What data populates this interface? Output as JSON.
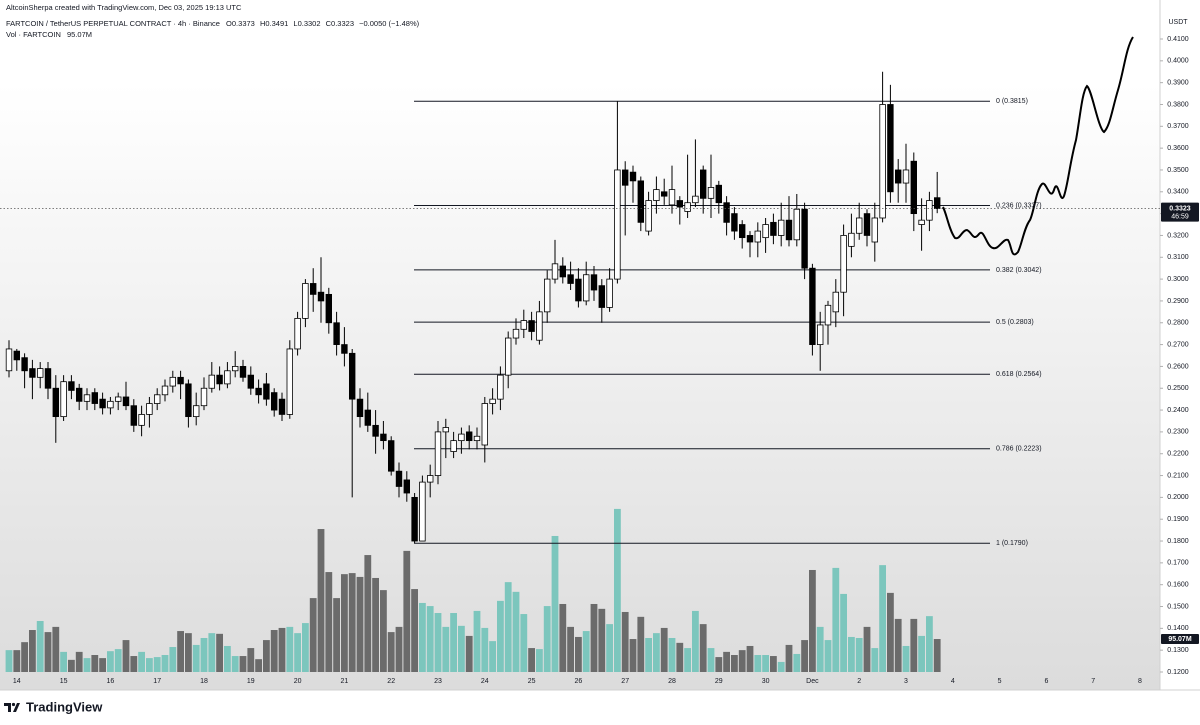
{
  "header": {
    "credit": "AltcoinSherpa created with TradingView.com, Dec 03, 2025 19:13 UTC",
    "symbol": "FARTCOIN / TetherUS PERPETUAL CONTRACT · 4h · Binance",
    "ohlc": [
      {
        "key": "O",
        "value": "0.3373"
      },
      {
        "key": "H",
        "value": "0.3491"
      },
      {
        "key": "L",
        "value": "0.3302"
      },
      {
        "key": "C",
        "value": "0.3323"
      }
    ],
    "change": "−0.0050 (−1.48%)",
    "vol_label": "Vol · FARTCOIN",
    "vol_value": "95.07M"
  },
  "footer": {
    "brand": "TradingView"
  },
  "chart_data": {
    "type": "candlestick",
    "x_labels": [
      "14",
      "15",
      "16",
      "17",
      "18",
      "19",
      "20",
      "21",
      "22",
      "23",
      "24",
      "25",
      "26",
      "27",
      "28",
      "29",
      "30",
      "Dec",
      "2",
      "3",
      "4",
      "5",
      "6",
      "7",
      "8"
    ],
    "open": [
      0.258,
      0.267,
      0.264,
      0.259,
      0.255,
      0.259,
      0.25,
      0.237,
      0.253,
      0.25,
      0.244,
      0.248,
      0.245,
      0.241,
      0.244,
      0.246,
      0.242,
      0.233,
      0.238,
      0.243,
      0.247,
      0.251,
      0.255,
      0.252,
      0.237,
      0.242,
      0.25,
      0.256,
      0.252,
      0.258,
      0.26,
      0.256,
      0.25,
      0.252,
      0.248,
      0.245,
      0.238,
      0.268,
      0.282,
      0.298,
      0.294,
      0.293,
      0.28,
      0.27,
      0.266,
      0.245,
      0.24,
      0.233,
      0.229,
      0.226,
      0.212,
      0.208,
      0.2,
      0.18,
      0.207,
      0.21,
      0.23,
      0.221,
      0.226,
      0.23,
      0.226,
      0.224,
      0.243,
      0.245,
      0.256,
      0.273,
      0.277,
      0.281,
      0.272,
      0.285,
      0.3,
      0.306,
      0.302,
      0.3,
      0.29,
      0.302,
      0.297,
      0.287,
      0.3,
      0.35,
      0.349,
      0.345,
      0.322,
      0.336,
      0.34,
      0.334,
      0.336,
      0.331,
      0.335,
      0.35,
      0.337,
      0.343,
      0.335,
      0.33,
      0.325,
      0.32,
      0.317,
      0.319,
      0.326,
      0.32,
      0.327,
      0.318,
      0.332,
      0.305,
      0.27,
      0.279,
      0.285,
      0.294,
      0.315,
      0.321,
      0.33,
      0.317,
      0.328,
      0.38,
      0.35,
      0.344,
      0.354,
      0.325,
      0.327,
      0.3373
    ],
    "high": [
      0.272,
      0.268,
      0.266,
      0.263,
      0.262,
      0.262,
      0.256,
      0.256,
      0.256,
      0.252,
      0.25,
      0.25,
      0.248,
      0.246,
      0.248,
      0.253,
      0.245,
      0.242,
      0.246,
      0.25,
      0.254,
      0.258,
      0.258,
      0.254,
      0.248,
      0.255,
      0.262,
      0.26,
      0.262,
      0.267,
      0.263,
      0.26,
      0.254,
      0.257,
      0.25,
      0.248,
      0.272,
      0.285,
      0.3,
      0.305,
      0.31,
      0.296,
      0.285,
      0.278,
      0.268,
      0.25,
      0.248,
      0.24,
      0.235,
      0.228,
      0.216,
      0.212,
      0.202,
      0.21,
      0.215,
      0.235,
      0.236,
      0.23,
      0.232,
      0.233,
      0.232,
      0.246,
      0.25,
      0.26,
      0.276,
      0.282,
      0.286,
      0.285,
      0.29,
      0.304,
      0.318,
      0.31,
      0.308,
      0.305,
      0.308,
      0.306,
      0.3,
      0.305,
      0.3815,
      0.354,
      0.352,
      0.347,
      0.34,
      0.347,
      0.346,
      0.352,
      0.338,
      0.357,
      0.364,
      0.352,
      0.357,
      0.345,
      0.338,
      0.333,
      0.327,
      0.322,
      0.326,
      0.328,
      0.33,
      0.335,
      0.338,
      0.339,
      0.335,
      0.307,
      0.285,
      0.29,
      0.3,
      0.325,
      0.33,
      0.335,
      0.332,
      0.335,
      0.395,
      0.389,
      0.355,
      0.362,
      0.358,
      0.337,
      0.34,
      0.3491
    ],
    "low": [
      0.255,
      0.258,
      0.25,
      0.245,
      0.25,
      0.245,
      0.225,
      0.235,
      0.245,
      0.24,
      0.24,
      0.24,
      0.238,
      0.238,
      0.24,
      0.24,
      0.23,
      0.228,
      0.232,
      0.24,
      0.244,
      0.248,
      0.245,
      0.232,
      0.233,
      0.24,
      0.248,
      0.249,
      0.25,
      0.255,
      0.253,
      0.247,
      0.243,
      0.242,
      0.237,
      0.235,
      0.236,
      0.265,
      0.278,
      0.285,
      0.28,
      0.275,
      0.265,
      0.26,
      0.2,
      0.232,
      0.23,
      0.22,
      0.222,
      0.21,
      0.2,
      0.198,
      0.179,
      0.18,
      0.2,
      0.206,
      0.218,
      0.218,
      0.22,
      0.222,
      0.222,
      0.216,
      0.238,
      0.24,
      0.25,
      0.27,
      0.273,
      0.272,
      0.27,
      0.28,
      0.298,
      0.298,
      0.295,
      0.287,
      0.288,
      0.29,
      0.28,
      0.285,
      0.298,
      0.32,
      0.335,
      0.322,
      0.32,
      0.33,
      0.334,
      0.33,
      0.325,
      0.328,
      0.333,
      0.33,
      0.328,
      0.33,
      0.32,
      0.318,
      0.314,
      0.31,
      0.31,
      0.312,
      0.316,
      0.315,
      0.315,
      0.315,
      0.3,
      0.265,
      0.258,
      0.27,
      0.278,
      0.283,
      0.31,
      0.318,
      0.315,
      0.308,
      0.326,
      0.335,
      0.335,
      0.335,
      0.322,
      0.313,
      0.322,
      0.3302
    ],
    "close": [
      0.268,
      0.263,
      0.258,
      0.255,
      0.259,
      0.25,
      0.237,
      0.253,
      0.249,
      0.244,
      0.247,
      0.243,
      0.241,
      0.244,
      0.246,
      0.242,
      0.233,
      0.238,
      0.243,
      0.247,
      0.251,
      0.255,
      0.252,
      0.237,
      0.242,
      0.25,
      0.256,
      0.252,
      0.258,
      0.26,
      0.255,
      0.25,
      0.247,
      0.245,
      0.24,
      0.238,
      0.268,
      0.282,
      0.298,
      0.293,
      0.29,
      0.28,
      0.27,
      0.266,
      0.245,
      0.237,
      0.233,
      0.228,
      0.226,
      0.212,
      0.205,
      0.202,
      0.18,
      0.207,
      0.21,
      0.23,
      0.232,
      0.226,
      0.229,
      0.226,
      0.228,
      0.243,
      0.245,
      0.256,
      0.273,
      0.277,
      0.281,
      0.276,
      0.285,
      0.3,
      0.307,
      0.301,
      0.298,
      0.29,
      0.302,
      0.295,
      0.287,
      0.3,
      0.35,
      0.343,
      0.345,
      0.326,
      0.336,
      0.341,
      0.338,
      0.341,
      0.333,
      0.335,
      0.338,
      0.337,
      0.342,
      0.335,
      0.326,
      0.322,
      0.319,
      0.317,
      0.322,
      0.325,
      0.32,
      0.327,
      0.318,
      0.332,
      0.305,
      0.27,
      0.279,
      0.288,
      0.294,
      0.32,
      0.321,
      0.328,
      0.32,
      0.328,
      0.38,
      0.34,
      0.344,
      0.35,
      0.33,
      0.327,
      0.336,
      0.3323
    ],
    "volume": [
      63,
      63,
      86,
      121,
      147,
      115,
      130,
      58,
      35,
      58,
      40,
      49,
      40,
      60,
      66,
      92,
      46,
      58,
      40,
      43,
      49,
      72,
      118,
      112,
      78,
      98,
      112,
      110,
      75,
      46,
      46,
      69,
      37,
      92,
      121,
      127,
      130,
      112,
      141,
      213,
      412,
      288,
      213,
      282,
      285,
      274,
      337,
      271,
      236,
      115,
      130,
      349,
      239,
      199,
      190,
      170,
      130,
      170,
      133,
      104,
      176,
      127,
      89,
      205,
      259,
      231,
      167,
      69,
      66,
      190,
      392,
      196,
      130,
      101,
      118,
      196,
      182,
      138,
      470,
      173,
      95,
      159,
      98,
      112,
      127,
      98,
      84,
      69,
      176,
      138,
      69,
      43,
      58,
      49,
      63,
      75,
      49,
      49,
      46,
      29,
      78,
      52,
      92,
      294,
      130,
      92,
      300,
      225,
      101,
      98,
      130,
      69,
      308,
      228,
      153,
      75,
      153,
      104,
      161,
      95.07
    ],
    "volume_label": {
      "value": 95.07,
      "label": "95.07M"
    },
    "up_color": "#ffffff",
    "down_color": "#000000",
    "volume_up_color": "#7cc6bd",
    "volume_down_color": "#6b6b6b",
    "y_unit": "USDT",
    "last_price": 0.3323,
    "countdown": "46:59",
    "ylim": [
      0.12,
      0.41
    ],
    "yticks": [
      {
        "value": 0.12,
        "label": "0.1200"
      },
      {
        "value": 0.13,
        "label": "0.1300"
      },
      {
        "value": 0.14,
        "label": "0.1400"
      },
      {
        "value": 0.15,
        "label": "0.1500"
      },
      {
        "value": 0.16,
        "label": "0.1600"
      },
      {
        "value": 0.17,
        "label": "0.1700"
      },
      {
        "value": 0.18,
        "label": "0.1800"
      },
      {
        "value": 0.19,
        "label": "0.1900"
      },
      {
        "value": 0.2,
        "label": "0.2000"
      },
      {
        "value": 0.21,
        "label": "0.2100"
      },
      {
        "value": 0.22,
        "label": "0.2200"
      },
      {
        "value": 0.23,
        "label": "0.2300"
      },
      {
        "value": 0.24,
        "label": "0.2400"
      },
      {
        "value": 0.25,
        "label": "0.2500"
      },
      {
        "value": 0.26,
        "label": "0.2600"
      },
      {
        "value": 0.27,
        "label": "0.2700"
      },
      {
        "value": 0.28,
        "label": "0.2800"
      },
      {
        "value": 0.29,
        "label": "0.2900"
      },
      {
        "value": 0.3,
        "label": "0.3000"
      },
      {
        "value": 0.31,
        "label": "0.3100"
      },
      {
        "value": 0.32,
        "label": "0.3200"
      },
      {
        "value": 0.33,
        "label": "0.3300"
      },
      {
        "value": 0.34,
        "label": "0.3400"
      },
      {
        "value": 0.35,
        "label": "0.3500"
      },
      {
        "value": 0.36,
        "label": "0.3600"
      },
      {
        "value": 0.37,
        "label": "0.3700"
      },
      {
        "value": 0.38,
        "label": "0.3800"
      },
      {
        "value": 0.39,
        "label": "0.3900"
      },
      {
        "value": 0.4,
        "label": "0.4000"
      },
      {
        "value": 0.41,
        "label": "0.4100"
      }
    ],
    "fib_levels": [
      {
        "value": 0.3815,
        "label": "0 (0.3815)"
      },
      {
        "value": 0.3337,
        "label": "0.236 (0.3337)"
      },
      {
        "value": 0.3042,
        "label": "0.382 (0.3042)"
      },
      {
        "value": 0.2803,
        "label": "0.5 (0.2803)"
      },
      {
        "value": 0.2564,
        "label": "0.618 (0.2564)"
      },
      {
        "value": 0.2223,
        "label": "0.786 (0.2223)"
      },
      {
        "value": 0.179,
        "label": "1 (0.1790)"
      }
    ]
  }
}
